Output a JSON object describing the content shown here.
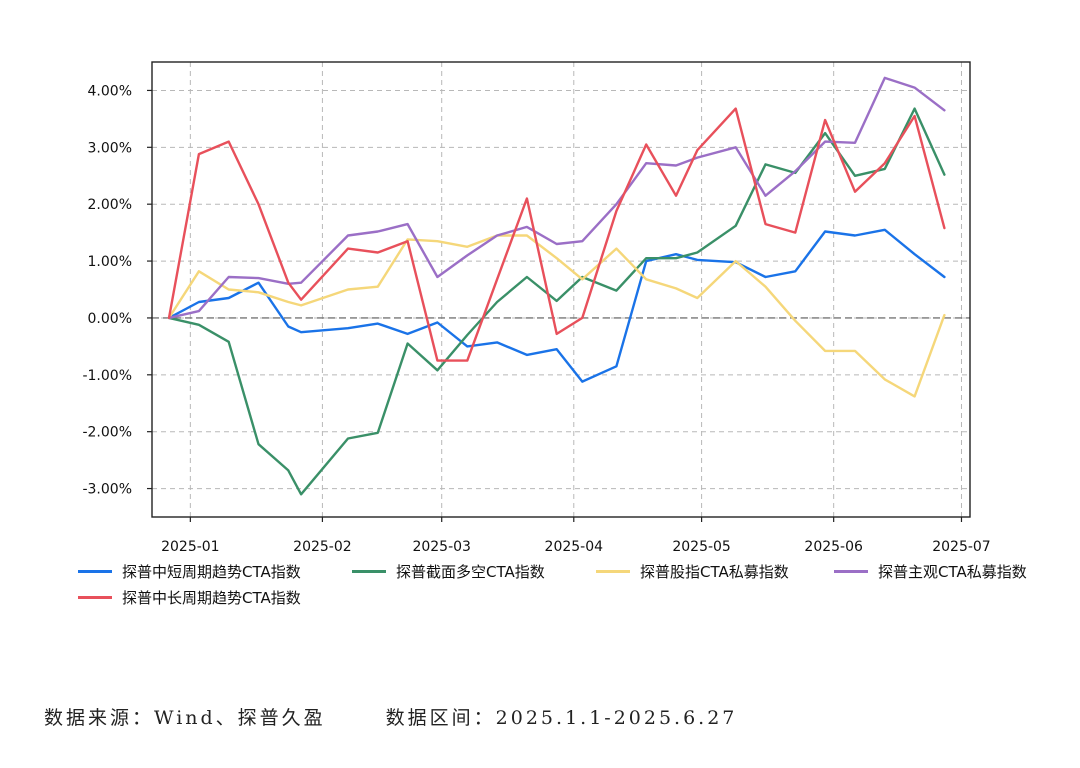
{
  "chart_data": {
    "type": "line",
    "title": "",
    "xlabel": "",
    "ylabel": "",
    "ylim": [
      -3.5,
      4.5
    ],
    "yticks": [
      -3,
      -2,
      -1,
      0,
      1,
      2,
      3,
      4
    ],
    "ytick_labels": [
      "-3.00%",
      "-2.00%",
      "-1.00%",
      "0.00%",
      "1.00%",
      "2.00%",
      "3.00%",
      "4.00%"
    ],
    "xlim": [
      "2024-12-23",
      "2025-07-03"
    ],
    "xticks": [
      "2025-01-01",
      "2025-02-01",
      "2025-03-01",
      "2025-04-01",
      "2025-05-01",
      "2025-06-01",
      "2025-07-01"
    ],
    "xtick_labels": [
      "2025-01",
      "2025-02",
      "2025-03",
      "2025-04",
      "2025-05",
      "2025-06",
      "2025-07"
    ],
    "grid": true,
    "zero_line": true,
    "legend_position": "bottom",
    "x": [
      "2024-12-27",
      "2025-01-03",
      "2025-01-10",
      "2025-01-17",
      "2025-01-24",
      "2025-01-27",
      "2025-02-07",
      "2025-02-14",
      "2025-02-21",
      "2025-02-28",
      "2025-03-07",
      "2025-03-14",
      "2025-03-21",
      "2025-03-28",
      "2025-04-03",
      "2025-04-11",
      "2025-04-18",
      "2025-04-25",
      "2025-04-30",
      "2025-05-09",
      "2025-05-16",
      "2025-05-23",
      "2025-05-30",
      "2025-06-06",
      "2025-06-13",
      "2025-06-20",
      "2025-06-27"
    ],
    "series": [
      {
        "name": "探普中短周期趋势CTA指数",
        "color": "#1a73e8",
        "values": [
          0,
          0.28,
          0.35,
          0.62,
          -0.15,
          -0.25,
          -0.18,
          -0.1,
          -0.28,
          -0.08,
          -0.5,
          -0.43,
          -0.65,
          -0.55,
          -1.12,
          -0.85,
          1.0,
          1.12,
          1.02,
          0.98,
          0.72,
          0.82,
          1.52,
          1.45,
          1.55,
          1.12,
          0.72
        ]
      },
      {
        "name": "探普截面多空CTA指数",
        "color": "#3a9068",
        "values": [
          0,
          -0.12,
          -0.42,
          -2.22,
          -2.68,
          -3.1,
          -2.12,
          -2.02,
          -0.45,
          -0.92,
          -0.3,
          0.28,
          0.72,
          0.3,
          0.72,
          0.48,
          1.05,
          1.05,
          1.15,
          1.62,
          2.7,
          2.55,
          3.25,
          2.5,
          2.62,
          3.68,
          2.52
        ]
      },
      {
        "name": "探普股指CTA私募指数",
        "color": "#f5d77a",
        "values": [
          0,
          0.82,
          0.5,
          0.45,
          0.28,
          0.22,
          0.5,
          0.55,
          1.38,
          1.35,
          1.25,
          1.45,
          1.45,
          1.05,
          0.68,
          1.22,
          0.68,
          0.52,
          0.35,
          1.0,
          0.55,
          -0.05,
          -0.58,
          -0.58,
          -1.08,
          -1.38,
          0.05
        ]
      },
      {
        "name": "探普主观CTA私募指数",
        "color": "#9b6fc6",
        "values": [
          0,
          0.12,
          0.72,
          0.7,
          0.6,
          0.62,
          1.45,
          1.52,
          1.65,
          0.72,
          1.1,
          1.45,
          1.6,
          1.3,
          1.35,
          2.0,
          2.72,
          2.68,
          2.82,
          3.0,
          2.15,
          2.58,
          3.1,
          3.08,
          4.22,
          4.05,
          3.65
        ]
      },
      {
        "name": "探普中长周期趋势CTA指数",
        "color": "#e8505b",
        "values": [
          0,
          2.88,
          3.1,
          2.0,
          0.62,
          0.32,
          1.22,
          1.15,
          1.35,
          -0.75,
          -0.75,
          0.68,
          2.1,
          -0.28,
          0.0,
          1.88,
          3.05,
          2.15,
          2.95,
          3.68,
          1.65,
          1.5,
          3.48,
          2.22,
          2.72,
          3.55,
          1.58
        ]
      }
    ]
  },
  "footnote": {
    "source": "数据来源：Wind、探普久盈",
    "range": "数据区间：2025.1.1-2025.6.27"
  }
}
